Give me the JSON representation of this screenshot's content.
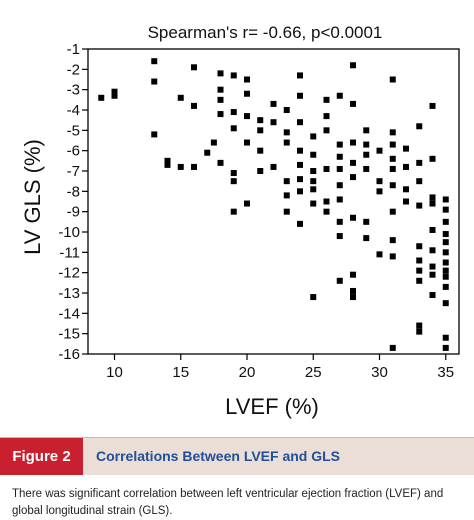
{
  "chart_data": {
    "type": "scatter",
    "annotation": "Spearman's r= -0.66, p<0.0001",
    "xlabel": "LVEF (%)",
    "ylabel": "LV GLS (%)",
    "xlim": [
      8,
      36
    ],
    "ylim": [
      -16,
      -1
    ],
    "xticks": [
      10,
      15,
      20,
      25,
      30,
      35
    ],
    "yticks": [
      -1,
      -2,
      -3,
      -4,
      -5,
      -6,
      -7,
      -8,
      -9,
      -10,
      -11,
      -12,
      -13,
      -14,
      -15,
      -16
    ],
    "marker_color": "#000000",
    "points": [
      [
        9,
        -3.4
      ],
      [
        10,
        -3.1
      ],
      [
        10,
        -3.3
      ],
      [
        13,
        -1.6
      ],
      [
        13,
        -2.6
      ],
      [
        13,
        -5.2
      ],
      [
        14,
        -6.5
      ],
      [
        14,
        -6.7
      ],
      [
        15,
        -3.4
      ],
      [
        15,
        -6.8
      ],
      [
        16,
        -1.9
      ],
      [
        16,
        -3.8
      ],
      [
        16,
        -6.8
      ],
      [
        17,
        -6.1
      ],
      [
        17.5,
        -5.6
      ],
      [
        18,
        -2.2
      ],
      [
        18,
        -3.0
      ],
      [
        18,
        -3.5
      ],
      [
        18,
        -4.2
      ],
      [
        18,
        -6.6
      ],
      [
        19,
        -2.3
      ],
      [
        19,
        -4.1
      ],
      [
        19,
        -4.9
      ],
      [
        19,
        -7.1
      ],
      [
        19,
        -7.5
      ],
      [
        19,
        -9.0
      ],
      [
        20,
        -2.5
      ],
      [
        20,
        -3.2
      ],
      [
        20,
        -4.3
      ],
      [
        20,
        -5.6
      ],
      [
        20,
        -8.6
      ],
      [
        21,
        -4.5
      ],
      [
        21,
        -5.0
      ],
      [
        21,
        -6.0
      ],
      [
        21,
        -7.0
      ],
      [
        22,
        -3.7
      ],
      [
        22,
        -4.6
      ],
      [
        22,
        -6.8
      ],
      [
        23,
        -4.0
      ],
      [
        23,
        -5.1
      ],
      [
        23,
        -5.6
      ],
      [
        23,
        -7.5
      ],
      [
        23,
        -8.2
      ],
      [
        23,
        -9.0
      ],
      [
        24,
        -2.3
      ],
      [
        24,
        -3.3
      ],
      [
        24,
        -4.6
      ],
      [
        24,
        -6.0
      ],
      [
        24,
        -6.7
      ],
      [
        24,
        -7.4
      ],
      [
        24,
        -8.0
      ],
      [
        24,
        -9.6
      ],
      [
        25,
        -5.3
      ],
      [
        25,
        -6.2
      ],
      [
        25,
        -7.0
      ],
      [
        25,
        -7.5
      ],
      [
        25,
        -7.9
      ],
      [
        25,
        -8.6
      ],
      [
        25,
        -13.2
      ],
      [
        26,
        -3.5
      ],
      [
        26,
        -4.3
      ],
      [
        26,
        -5.0
      ],
      [
        26,
        -6.9
      ],
      [
        26,
        -8.5
      ],
      [
        26,
        -9.0
      ],
      [
        27,
        -3.3
      ],
      [
        27,
        -5.7
      ],
      [
        27,
        -6.3
      ],
      [
        27,
        -6.9
      ],
      [
        27,
        -7.7
      ],
      [
        27,
        -8.4
      ],
      [
        27,
        -9.5
      ],
      [
        27,
        -10.2
      ],
      [
        27,
        -12.4
      ],
      [
        28,
        -1.8
      ],
      [
        28,
        -3.7
      ],
      [
        28,
        -5.6
      ],
      [
        28,
        -6.6
      ],
      [
        28,
        -7.3
      ],
      [
        28,
        -9.3
      ],
      [
        28,
        -12.1
      ],
      [
        28,
        -12.9
      ],
      [
        28,
        -13.2
      ],
      [
        29,
        -5.0
      ],
      [
        29,
        -5.7
      ],
      [
        29,
        -6.2
      ],
      [
        29,
        -6.9
      ],
      [
        29,
        -9.5
      ],
      [
        29,
        -10.3
      ],
      [
        30,
        -6.0
      ],
      [
        30,
        -7.5
      ],
      [
        30,
        -8.0
      ],
      [
        30,
        -11.1
      ],
      [
        31,
        -2.5
      ],
      [
        31,
        -5.1
      ],
      [
        31,
        -5.7
      ],
      [
        31,
        -6.4
      ],
      [
        31,
        -6.9
      ],
      [
        31,
        -7.7
      ],
      [
        31,
        -9.0
      ],
      [
        31,
        -10.4
      ],
      [
        31,
        -11.2
      ],
      [
        31,
        -15.7
      ],
      [
        32,
        -5.9
      ],
      [
        32,
        -6.8
      ],
      [
        32,
        -7.9
      ],
      [
        32,
        -8.5
      ],
      [
        33,
        -4.8
      ],
      [
        33,
        -6.6
      ],
      [
        33,
        -7.5
      ],
      [
        33,
        -8.7
      ],
      [
        33,
        -10.7
      ],
      [
        33,
        -11.4
      ],
      [
        33,
        -11.9
      ],
      [
        33,
        -12.4
      ],
      [
        33,
        -14.6
      ],
      [
        33,
        -14.9
      ],
      [
        34,
        -3.8
      ],
      [
        34,
        -6.4
      ],
      [
        34,
        -8.3
      ],
      [
        34,
        -8.6
      ],
      [
        34,
        -9.9
      ],
      [
        34,
        -10.9
      ],
      [
        34,
        -11.7
      ],
      [
        34,
        -12.1
      ],
      [
        34,
        -13.1
      ],
      [
        35,
        -8.4
      ],
      [
        35,
        -8.9
      ],
      [
        35,
        -9.5
      ],
      [
        35,
        -10.1
      ],
      [
        35,
        -10.5
      ],
      [
        35,
        -11.0
      ],
      [
        35,
        -11.5
      ],
      [
        35,
        -11.9
      ],
      [
        35,
        -12.2
      ],
      [
        35,
        -12.7
      ],
      [
        35,
        -13.5
      ],
      [
        35,
        -15.2
      ],
      [
        35,
        -15.7
      ]
    ],
    "grid": false
  },
  "figure": {
    "label": "Figure 2",
    "title": "Correlations Between LVEF and GLS",
    "label_color": "#c8202f",
    "title_color": "#214f99",
    "band_color": "#eaded6"
  },
  "caption": "There was significant correlation between left ventricular ejection fraction (LVEF) and global longitudinal strain (GLS)."
}
